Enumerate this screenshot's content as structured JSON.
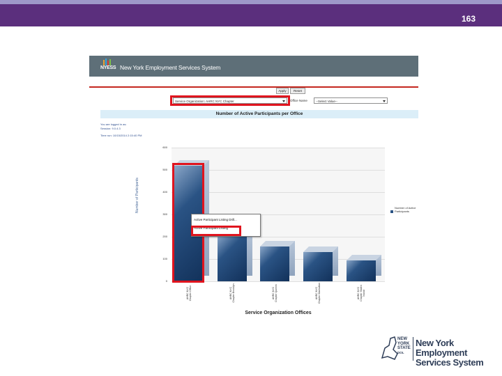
{
  "slide": {
    "number": "163"
  },
  "app": {
    "logo_text": "NYESS",
    "title": "New York Employment Services System"
  },
  "toolbar": {
    "apply_label": "Apply",
    "reset_label": "Reset"
  },
  "filters": {
    "service_org_value": "Service Organization: AHRC NYC Chapter",
    "office_label": "Office Name",
    "office_value": "--Select Value--"
  },
  "chart_header": {
    "title": "Number of Active Participants per Office"
  },
  "info": {
    "line1": "You are logged in as:",
    "line2": "Session: 9.0.4.3",
    "line3": "Time run: 10/15/2014 2:15:40 PM"
  },
  "popup": {
    "item1": "Active Participant Listing Drill...",
    "item2": "Active Participant Listing"
  },
  "chart_data": {
    "type": "bar",
    "categories": [
      "AHRC NYC Chapter Office",
      "AHRC NYC Chapter Brooklyn",
      "AHRC NYC Chapter Queens",
      "AHRC NYC Chapter Manhattan",
      "AHRC NYC Chapter Staten Island"
    ],
    "values": [
      520,
      205,
      155,
      130,
      95
    ],
    "xlabel": "Service Organization Offices",
    "ylabel": "Number of Participants",
    "yticks": [
      "0",
      "100",
      "200",
      "300",
      "400",
      "500",
      "600"
    ],
    "ylim": [
      0,
      600
    ],
    "legend": "Number of Active Participants",
    "grid": true
  },
  "footer": {
    "state_line1": "NEW",
    "state_line2": "YORK",
    "state_line3": "STATE",
    "state_line4": "DOL",
    "text_line1": "New York Employment",
    "text_line2": "Services System"
  },
  "colors": {
    "header_bar": "#5b2f7d",
    "bar": "#2a5384",
    "highlight": "#e0141e"
  }
}
